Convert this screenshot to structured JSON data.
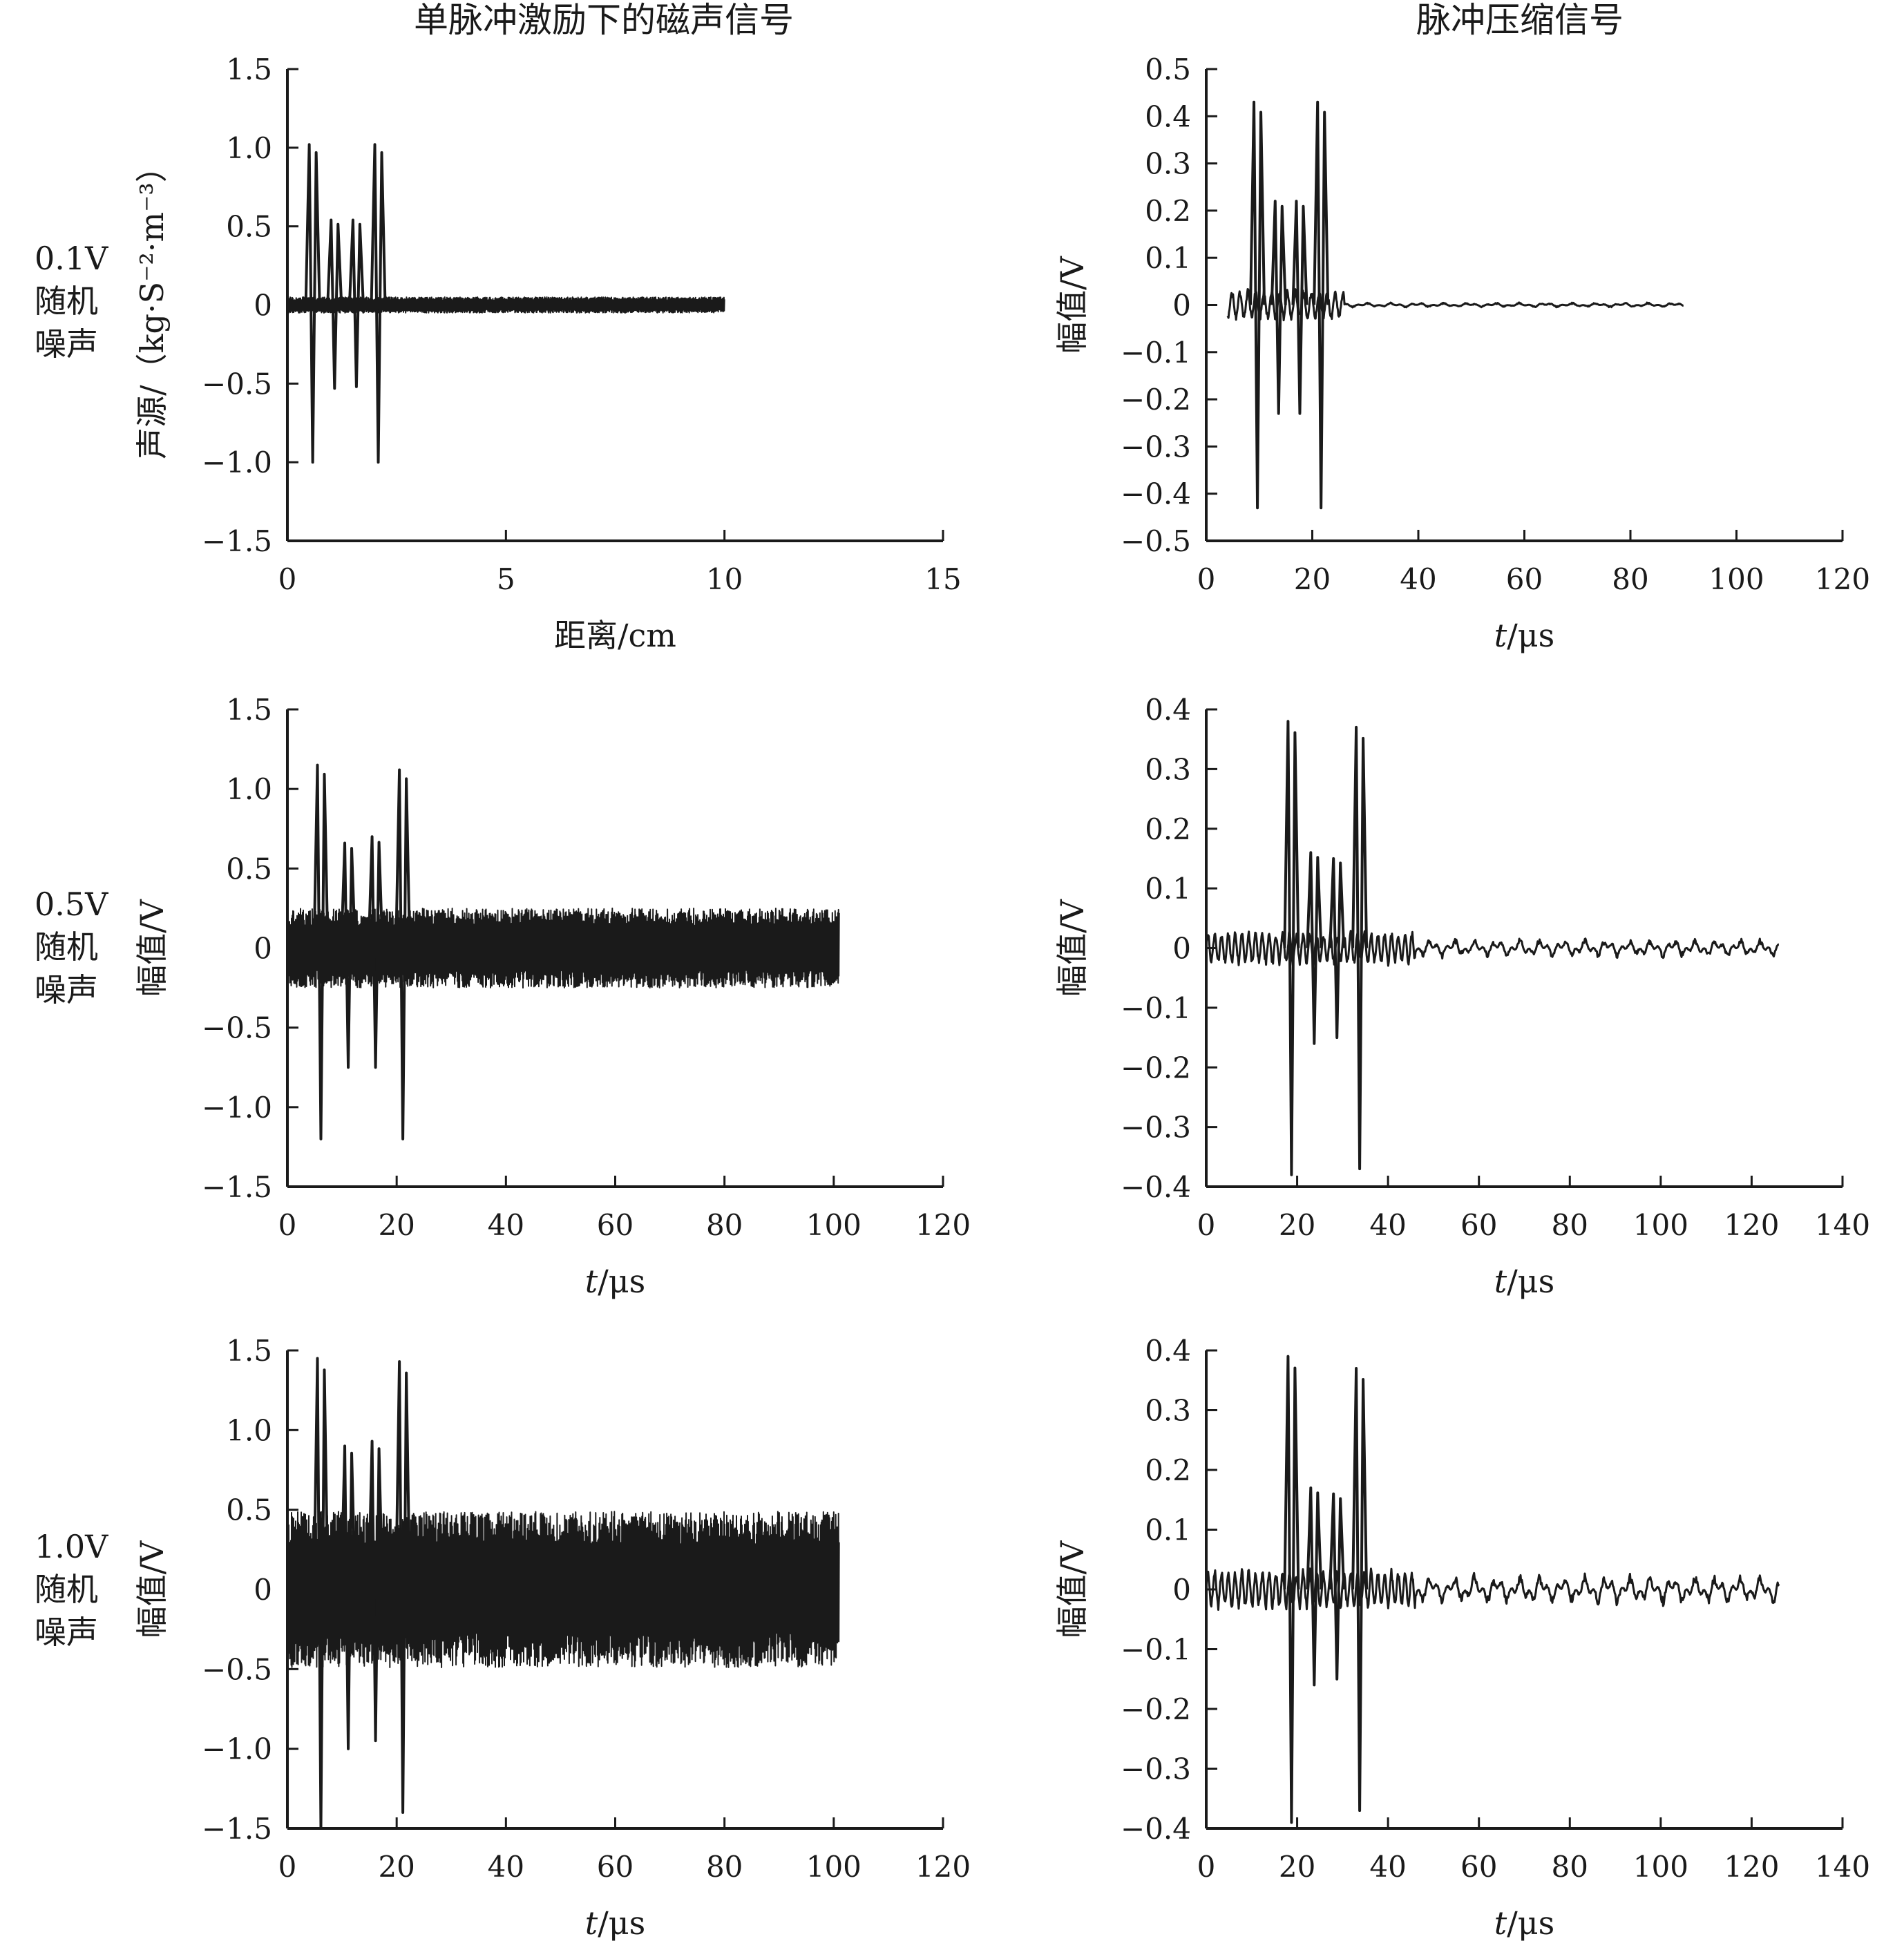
{
  "figure": {
    "column_titles": [
      "单脉冲激励下的磁声信号",
      "脉冲压缩信号"
    ],
    "row_labels": [
      [
        "0.1V",
        "随机",
        "噪声"
      ],
      [
        "0.5V",
        "随机",
        "噪声"
      ],
      [
        "1.0V",
        "随机",
        "噪声"
      ]
    ]
  },
  "chart_data": [
    {
      "id": "r1-left",
      "type": "line",
      "row": 0,
      "col": 0,
      "ylabel": "声源/（kg·S⁻²·m⁻³）",
      "xlabel": "距离/cm",
      "xlabel_italic": "",
      "xlim": [
        0,
        15
      ],
      "ylim": [
        -1.5,
        1.5
      ],
      "xticks": [
        0,
        5,
        10,
        15
      ],
      "yticks": [
        -1.5,
        -1.0,
        -0.5,
        0,
        0.5,
        1.0,
        1.5
      ],
      "xtick_labels": [
        "0",
        "5",
        "10",
        "15"
      ],
      "ytick_labels": [
        "−1.5",
        "−1.0",
        "−0.5",
        "0",
        "0.5",
        "1.0",
        "1.5"
      ],
      "signal": {
        "kind": "noise-pulses",
        "x_end": 10,
        "noise_amp": 0.05,
        "density": 1600,
        "pulses": [
          {
            "x": 0.5,
            "max": 1.02,
            "min": -1.0
          },
          {
            "x": 1.0,
            "max": 0.54,
            "min": -0.53
          },
          {
            "x": 1.5,
            "max": 0.54,
            "min": -0.52
          },
          {
            "x": 2.0,
            "max": 1.02,
            "min": -1.0
          }
        ]
      }
    },
    {
      "id": "r1-right",
      "type": "line",
      "row": 0,
      "col": 1,
      "ylabel": "幅值/V",
      "xlabel": "/μs",
      "xlabel_italic": "t",
      "xlim": [
        0,
        120
      ],
      "ylim": [
        -0.5,
        0.5
      ],
      "xticks": [
        0,
        20,
        40,
        60,
        80,
        100,
        120
      ],
      "yticks": [
        -0.5,
        -0.4,
        -0.3,
        -0.2,
        -0.1,
        0,
        0.1,
        0.2,
        0.3,
        0.4,
        0.5
      ],
      "xtick_labels": [
        "0",
        "20",
        "40",
        "60",
        "80",
        "100",
        "120"
      ],
      "ytick_labels": [
        "−0.5",
        "−0.4",
        "−0.3",
        "−0.2",
        "−0.1",
        "0",
        "0.1",
        "0.2",
        "0.3",
        "0.4",
        "0.5"
      ],
      "signal": {
        "kind": "compressed",
        "x_start": 4,
        "x_end": 90,
        "osc_amp": 0.035,
        "osc_range": [
          4,
          26
        ],
        "tail_amp": 0.003,
        "pulses": [
          {
            "x": 9,
            "max": 0.43,
            "min": -0.43
          },
          {
            "x": 13,
            "max": 0.22,
            "min": -0.23
          },
          {
            "x": 17,
            "max": 0.22,
            "min": -0.23
          },
          {
            "x": 21,
            "max": 0.43,
            "min": -0.43
          }
        ]
      }
    },
    {
      "id": "r2-left",
      "type": "line",
      "row": 1,
      "col": 0,
      "ylabel": "幅值/V",
      "xlabel": "/μs",
      "xlabel_italic": "t",
      "xlim": [
        0,
        120
      ],
      "ylim": [
        -1.5,
        1.5
      ],
      "xticks": [
        0,
        20,
        40,
        60,
        80,
        100,
        120
      ],
      "yticks": [
        -1.5,
        -1.0,
        -0.5,
        0,
        0.5,
        1.0,
        1.5
      ],
      "xtick_labels": [
        "0",
        "20",
        "40",
        "60",
        "80",
        "100",
        "120"
      ],
      "ytick_labels": [
        "−1.5",
        "−1.0",
        "−0.5",
        "0",
        "0.5",
        "1.0",
        "1.5"
      ],
      "signal": {
        "kind": "noise-pulses",
        "x_end": 101,
        "noise_amp": 0.25,
        "density": 1600,
        "pulses": [
          {
            "x": 5.5,
            "max": 1.15,
            "min": -1.2
          },
          {
            "x": 10.5,
            "max": 0.66,
            "min": -0.75
          },
          {
            "x": 15.5,
            "max": 0.7,
            "min": -0.75
          },
          {
            "x": 20.5,
            "max": 1.12,
            "min": -1.2
          }
        ]
      }
    },
    {
      "id": "r2-right",
      "type": "line",
      "row": 1,
      "col": 1,
      "ylabel": "幅值/V",
      "xlabel": "/μs",
      "xlabel_italic": "t",
      "xlim": [
        0,
        140
      ],
      "ylim": [
        -0.4,
        0.4
      ],
      "xticks": [
        0,
        20,
        40,
        60,
        80,
        100,
        120,
        140
      ],
      "yticks": [
        -0.4,
        -0.3,
        -0.2,
        -0.1,
        0,
        0.1,
        0.2,
        0.3,
        0.4
      ],
      "xtick_labels": [
        "0",
        "20",
        "40",
        "60",
        "80",
        "100",
        "120",
        "140"
      ],
      "ytick_labels": [
        "−0.4",
        "−0.3",
        "−0.2",
        "−0.1",
        "0",
        "0.1",
        "0.2",
        "0.3",
        "0.4"
      ],
      "signal": {
        "kind": "compressed",
        "x_start": 0,
        "x_end": 126,
        "osc_amp": 0.03,
        "osc_range": [
          0,
          46
        ],
        "tail_amp": 0.01,
        "pulses": [
          {
            "x": 18,
            "max": 0.38,
            "min": -0.38
          },
          {
            "x": 23,
            "max": 0.16,
            "min": -0.16
          },
          {
            "x": 28,
            "max": 0.15,
            "min": -0.15
          },
          {
            "x": 33,
            "max": 0.37,
            "min": -0.37
          }
        ]
      }
    },
    {
      "id": "r3-left",
      "type": "line",
      "row": 2,
      "col": 0,
      "ylabel": "幅值/V",
      "xlabel": "/μs",
      "xlabel_italic": "t",
      "xlim": [
        0,
        120
      ],
      "ylim": [
        -1.5,
        1.5
      ],
      "xticks": [
        0,
        20,
        40,
        60,
        80,
        100,
        120
      ],
      "yticks": [
        -1.5,
        -1.0,
        -0.5,
        0,
        0.5,
        1.0,
        1.5
      ],
      "xtick_labels": [
        "0",
        "20",
        "40",
        "60",
        "80",
        "100",
        "120"
      ],
      "ytick_labels": [
        "−1.5",
        "−1.0",
        "−0.5",
        "0",
        "0.5",
        "1.0",
        "1.5"
      ],
      "signal": {
        "kind": "noise-pulses",
        "x_end": 101,
        "noise_amp": 0.49,
        "density": 1600,
        "pulses": [
          {
            "x": 5.5,
            "max": 1.45,
            "min": -1.5
          },
          {
            "x": 10.5,
            "max": 0.9,
            "min": -1.0
          },
          {
            "x": 15.5,
            "max": 0.93,
            "min": -0.95
          },
          {
            "x": 20.5,
            "max": 1.43,
            "min": -1.4
          }
        ]
      }
    },
    {
      "id": "r3-right",
      "type": "line",
      "row": 2,
      "col": 1,
      "ylabel": "幅值/V",
      "xlabel": "/μs",
      "xlabel_italic": "t",
      "xlim": [
        0,
        140
      ],
      "ylim": [
        -0.4,
        0.4
      ],
      "xticks": [
        0,
        20,
        40,
        60,
        80,
        100,
        120,
        140
      ],
      "yticks": [
        -0.4,
        -0.3,
        -0.2,
        -0.1,
        0,
        0.1,
        0.2,
        0.3,
        0.4
      ],
      "xtick_labels": [
        "0",
        "20",
        "40",
        "60",
        "80",
        "100",
        "120",
        "140"
      ],
      "ytick_labels": [
        "−0.4",
        "−0.3",
        "−0.2",
        "−0.1",
        "0",
        "0.1",
        "0.2",
        "0.3",
        "0.4"
      ],
      "signal": {
        "kind": "compressed",
        "x_start": 0,
        "x_end": 126,
        "osc_amp": 0.035,
        "osc_range": [
          0,
          46
        ],
        "tail_amp": 0.016,
        "pulses": [
          {
            "x": 18,
            "max": 0.39,
            "min": -0.39
          },
          {
            "x": 23,
            "max": 0.17,
            "min": -0.16
          },
          {
            "x": 28,
            "max": 0.16,
            "min": -0.15
          },
          {
            "x": 33,
            "max": 0.37,
            "min": -0.37
          }
        ]
      }
    }
  ]
}
